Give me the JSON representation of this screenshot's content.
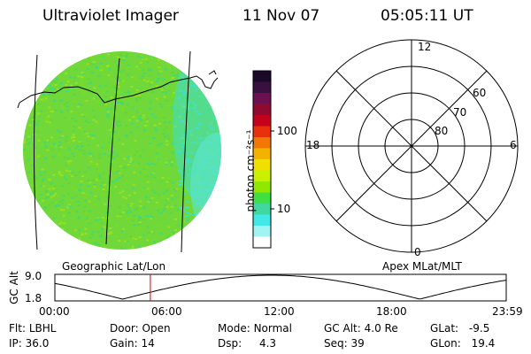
{
  "header": {
    "instrument": "Ultraviolet Imager",
    "date": "11 Nov 07",
    "time": "05:05:11 UT"
  },
  "colorbar": {
    "unit_label": "photon cm⁻²s⁻¹",
    "ticks": [
      "100",
      "10"
    ],
    "colors": [
      "#1a0a2a",
      "#3a1040",
      "#6b1050",
      "#900a30",
      "#c4001a",
      "#e8300a",
      "#f07800",
      "#f4b200",
      "#f0e000",
      "#c8f000",
      "#90e800",
      "#40e040",
      "#40d8a0",
      "#40e8e8",
      "#a0f4f4",
      "#ffffff"
    ]
  },
  "image_panel": {
    "label": "Geographic Lat/Lon",
    "fill_colors": [
      "#7cdc24",
      "#58d848",
      "#9ce020",
      "#40d880",
      "#40e0d0"
    ]
  },
  "polar_plot": {
    "label": "Apex MLat/MLT",
    "mlt_labels": {
      "top": "12",
      "left": "18",
      "right": "6",
      "bottom": "0"
    },
    "lat_labels": [
      "60",
      "70",
      "80"
    ]
  },
  "altitude_strip": {
    "ylabel": "GC Alt",
    "ymax": "9.0",
    "ymin": "1.8",
    "xticks": [
      "00:00",
      "06:00",
      "12:00",
      "18:00",
      "23:59"
    ],
    "current_marker_hours": 5.08
  },
  "status": {
    "row1": [
      {
        "label": "Flt:",
        "value": "LBHL"
      },
      {
        "label": "Door:",
        "value": "Open"
      },
      {
        "label": "Mode:",
        "value": "Normal"
      },
      {
        "label": "GC Alt:",
        "value": "4.0 Re"
      },
      {
        "label": "GLat:",
        "value": "-9.5"
      }
    ],
    "row2": [
      {
        "label": "IP:",
        "value": "36.0"
      },
      {
        "label": "Gain:",
        "value": "14"
      },
      {
        "label": "Dsp:",
        "value": "4.3"
      },
      {
        "label": "Seq:",
        "value": "39"
      },
      {
        "label": "GLon:",
        "value": "19.4"
      }
    ]
  }
}
